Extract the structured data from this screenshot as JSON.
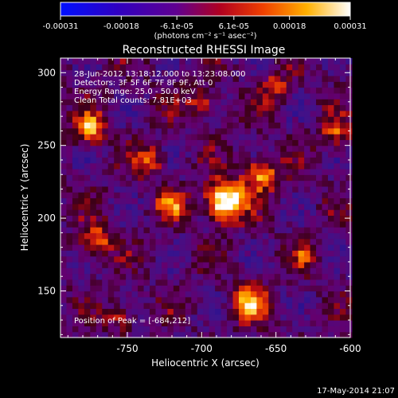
{
  "colorbar": {
    "tick_labels": [
      "-0.00031",
      "-0.00018",
      "-6.1e-05",
      "6.1e-05",
      "0.00018",
      "0.00031"
    ],
    "tick_values": [
      -0.00031,
      -0.00018,
      -6.1e-05,
      6.1e-05,
      0.00018,
      0.00031
    ],
    "range": [
      -0.00031,
      0.00031
    ],
    "units_label": "(photons cm⁻² s⁻¹ asec⁻²)"
  },
  "chart_data": {
    "type": "heatmap",
    "title": "Reconstructed RHESSI Image",
    "xlabel": "Heliocentric X (arcsec)",
    "ylabel": "Heliocentric Y (arcsec)",
    "xlim": [
      -795,
      -600
    ],
    "ylim": [
      118,
      310
    ],
    "xticks": [
      -750,
      -700,
      -650,
      -600
    ],
    "xtick_labels": [
      "-750",
      "-700",
      "-650",
      "-600"
    ],
    "yticks": [
      150,
      200,
      250,
      300
    ],
    "ytick_labels": [
      "150",
      "200",
      "250",
      "300"
    ],
    "colormap": [
      "#0000ff",
      "#3a0080",
      "#700070",
      "#c00000",
      "#ff6000",
      "#ffd000",
      "#ffffff"
    ],
    "annotations": [
      "28-Jun-2012 13:18:12.000 to 13:23:08.000",
      "Detectors: 3F 5F 6F 7F 8F 9F, Att 0",
      "Energy Range: 25.0 - 50.0 keV",
      "Clean    Total counts: 7.81E+03"
    ],
    "peak_label": "Position of Peak = [-684,212]",
    "peak": {
      "x": -684,
      "y": 212
    }
  },
  "footer": {
    "timestamp": "17-May-2014 21:07"
  }
}
